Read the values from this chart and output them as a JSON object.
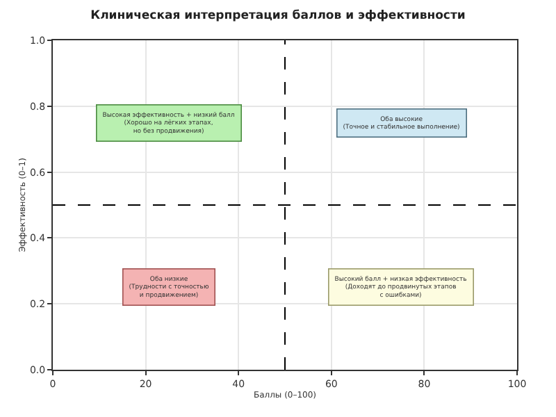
{
  "chart_data": {
    "type": "scatter",
    "title": "Клиническая интерпретация баллов и эффективности",
    "xlabel": "Баллы (0–100)",
    "ylabel": "Эффективность (0–1)",
    "xlim": [
      0,
      100
    ],
    "xticks": [
      0,
      20,
      40,
      60,
      80,
      100
    ],
    "ylim": [
      0,
      1
    ],
    "yticks": [
      {
        "value": 0,
        "label": "0.0"
      },
      {
        "value": 0.2,
        "label": "0.2"
      },
      {
        "value": 0.4,
        "label": "0.4"
      },
      {
        "value": 0.6,
        "label": "0.6"
      },
      {
        "value": 0.8,
        "label": "0.8"
      },
      {
        "value": 1,
        "label": "1.0"
      }
    ],
    "grid": true,
    "ref_lines": [
      {
        "axis": "x",
        "value": 50,
        "color": "#000000",
        "line_style": "dashed"
      },
      {
        "axis": "y",
        "value": 0.5,
        "color": "#000000",
        "line_style": "dashed"
      }
    ],
    "annotations": [
      "Высокая эффективность + низкий балл\n(Хорошо на лёгких этапах,\nно без продвижения)",
      "Оба высокие\n(Точное и стабильное выполнение)",
      "Оба низкие\n(Трудности с точностью\nи продвижением)",
      "Высокий балл + низкая эффективность\n(Доходят до продвинутых этапов\nс ошибками)"
    ]
  }
}
